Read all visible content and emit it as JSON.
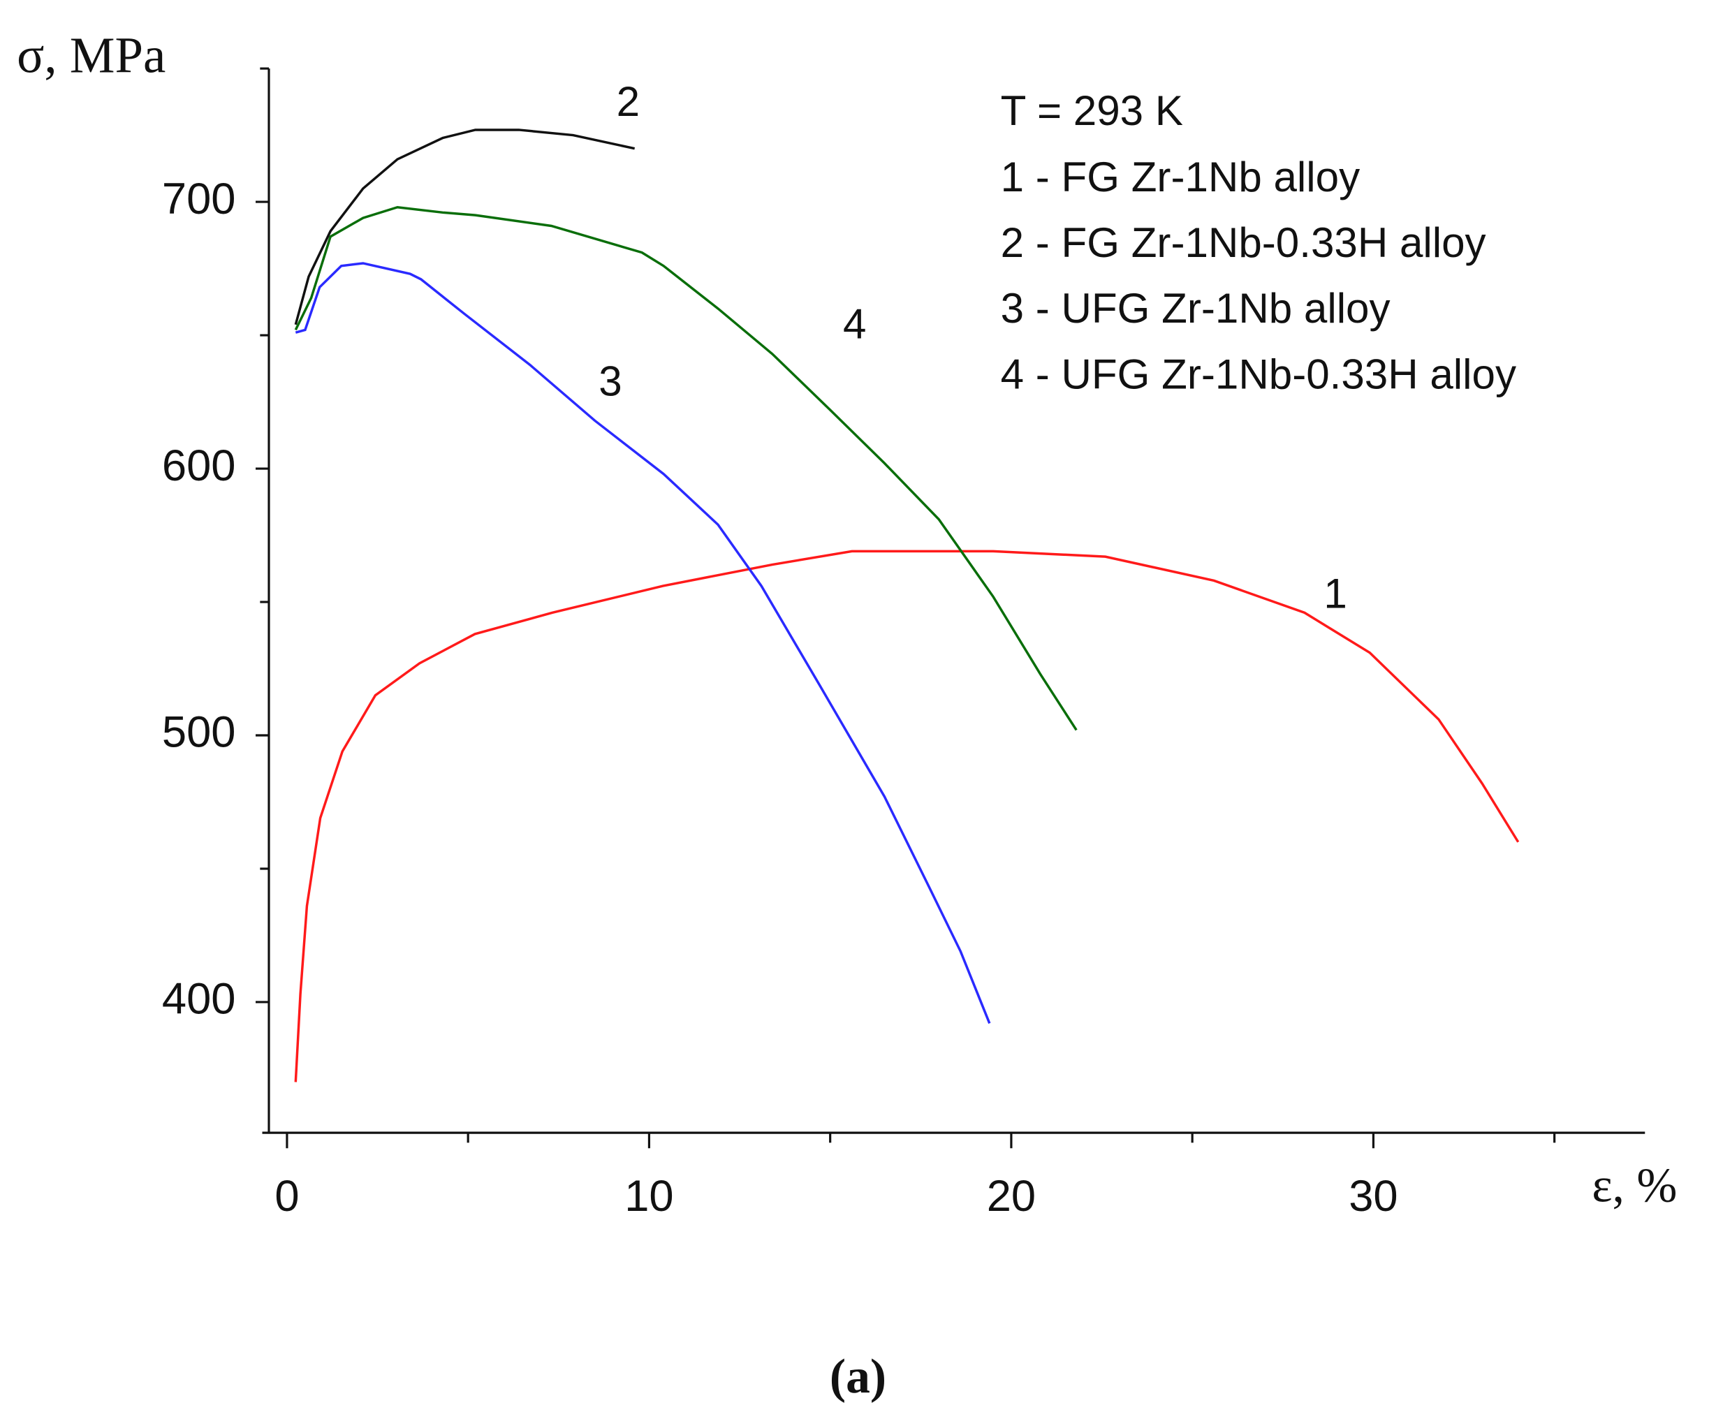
{
  "chart_data": {
    "type": "line",
    "y_label": "σ, MPa",
    "x_label": "ε, %",
    "caption": "(a)",
    "legend_title": "T = 293 K",
    "legend_lines": [
      "1 - FG Zr-1Nb alloy",
      "2 - FG Zr-1Nb-0.33H alloy",
      "3 - UFG Zr-1Nb alloy",
      "4 - UFG Zr-1Nb-0.33H alloy"
    ],
    "xlim": [
      -0.5,
      37.5
    ],
    "ylim": [
      351,
      750
    ],
    "xticks": [
      0,
      10,
      20,
      30
    ],
    "xminor_ticks": [
      5,
      15,
      25,
      35
    ],
    "yticks": [
      400,
      500,
      600,
      700
    ],
    "yminor_ticks": [
      450,
      550,
      650,
      750
    ],
    "series": [
      {
        "name": "1",
        "color": "#ff1a1a",
        "x": [
          0.24,
          0.37,
          0.55,
          0.92,
          1.53,
          2.44,
          3.66,
          5.19,
          7.33,
          10.38,
          13.4,
          15.6,
          19.5,
          22.6,
          25.6,
          28.1,
          29.9,
          31.8,
          33.0,
          34.0
        ],
        "values": [
          370,
          403,
          436,
          469,
          494,
          515,
          527,
          538,
          546,
          556,
          564,
          569,
          569,
          567,
          558,
          546,
          531,
          506,
          482,
          460
        ]
      },
      {
        "name": "2",
        "color": "#111111",
        "x": [
          0.24,
          0.6,
          1.2,
          2.1,
          3.05,
          4.3,
          5.2,
          6.4,
          7.9,
          9.6
        ],
        "values": [
          654,
          672,
          689,
          705,
          716,
          724,
          727,
          727,
          725,
          720
        ]
      },
      {
        "name": "3",
        "color": "#2a2aff",
        "x": [
          0.24,
          0.5,
          0.9,
          1.5,
          2.1,
          3.4,
          3.7,
          4.9,
          6.7,
          8.5,
          10.4,
          11.9,
          13.1,
          14.7,
          16.5,
          17.7,
          18.6,
          19.4
        ],
        "values": [
          651,
          652,
          668,
          676,
          677,
          673,
          671,
          658,
          639,
          618,
          598,
          579,
          556,
          519,
          477,
          444,
          419,
          392
        ]
      },
      {
        "name": "4",
        "color": "#0a6e0a",
        "x": [
          0.24,
          0.67,
          1.2,
          2.1,
          3.05,
          4.3,
          5.2,
          7.3,
          9.8,
          10.4,
          11.9,
          13.4,
          15.0,
          16.5,
          18.0,
          19.5,
          20.8,
          21.8
        ],
        "values": [
          652,
          664,
          687,
          694,
          698,
          696,
          695,
          691,
          681,
          676,
          660,
          643,
          622,
          602,
          581,
          552,
          523,
          502
        ]
      }
    ]
  }
}
